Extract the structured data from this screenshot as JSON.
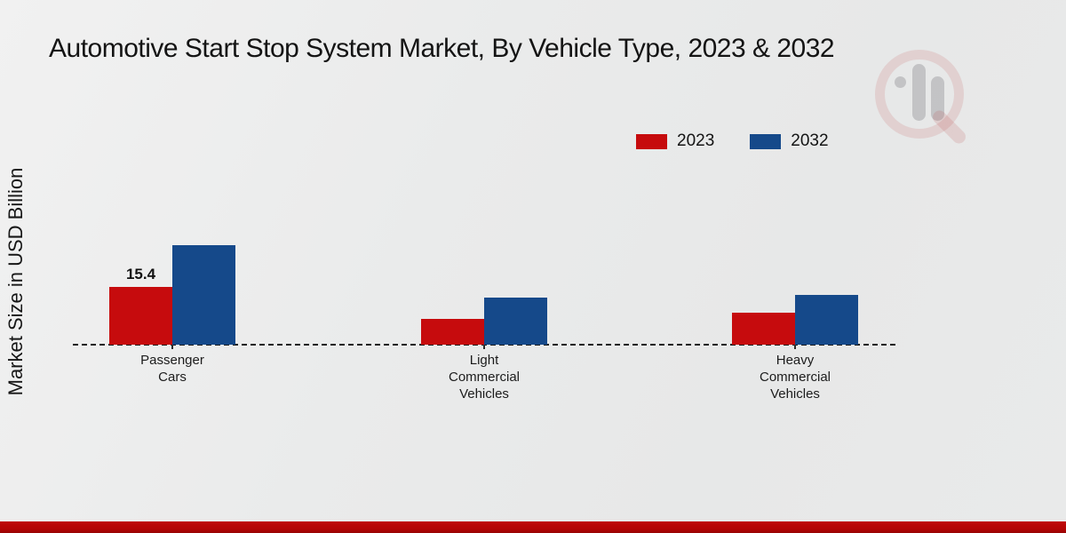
{
  "title": "Automotive Start Stop System Market, By Vehicle Type, 2023 & 2032",
  "y_axis_label": "Market Size in USD Billion",
  "legend": {
    "items": [
      {
        "label": "2023",
        "color": "#c60b0d"
      },
      {
        "label": "2032",
        "color": "#15498a"
      }
    ]
  },
  "watermark": {
    "name": "market-research-magnifier-logo"
  },
  "colors": {
    "accent_red": "#c60b0d",
    "accent_blue": "#15498a",
    "footer_red": "#b10505"
  },
  "chart_data": {
    "type": "bar",
    "title": "Automotive Start Stop System Market, By Vehicle Type, 2023 & 2032",
    "categories": [
      "Passenger Cars",
      "Light Commercial Vehicles",
      "Heavy Commercial Vehicles"
    ],
    "category_display": [
      "Passenger\nCars",
      "Light\nCommercial\nVehicles",
      "Heavy\nCommercial\nVehicles"
    ],
    "series": [
      {
        "name": "2023",
        "color": "#c60b0d",
        "values": [
          15.4,
          6.9,
          8.5
        ],
        "value_labels": [
          "15.4",
          "",
          ""
        ]
      },
      {
        "name": "2032",
        "color": "#15498a",
        "values": [
          26.5,
          12.6,
          13.3
        ],
        "value_labels": [
          "",
          "",
          ""
        ]
      }
    ],
    "xlabel": "",
    "ylabel": "Market Size in USD Billion",
    "ylim": [
      0,
      30
    ],
    "grid": false,
    "y_axis_ticks_visible": false,
    "legend_position": "top-right",
    "baseline_style": "dashed"
  }
}
